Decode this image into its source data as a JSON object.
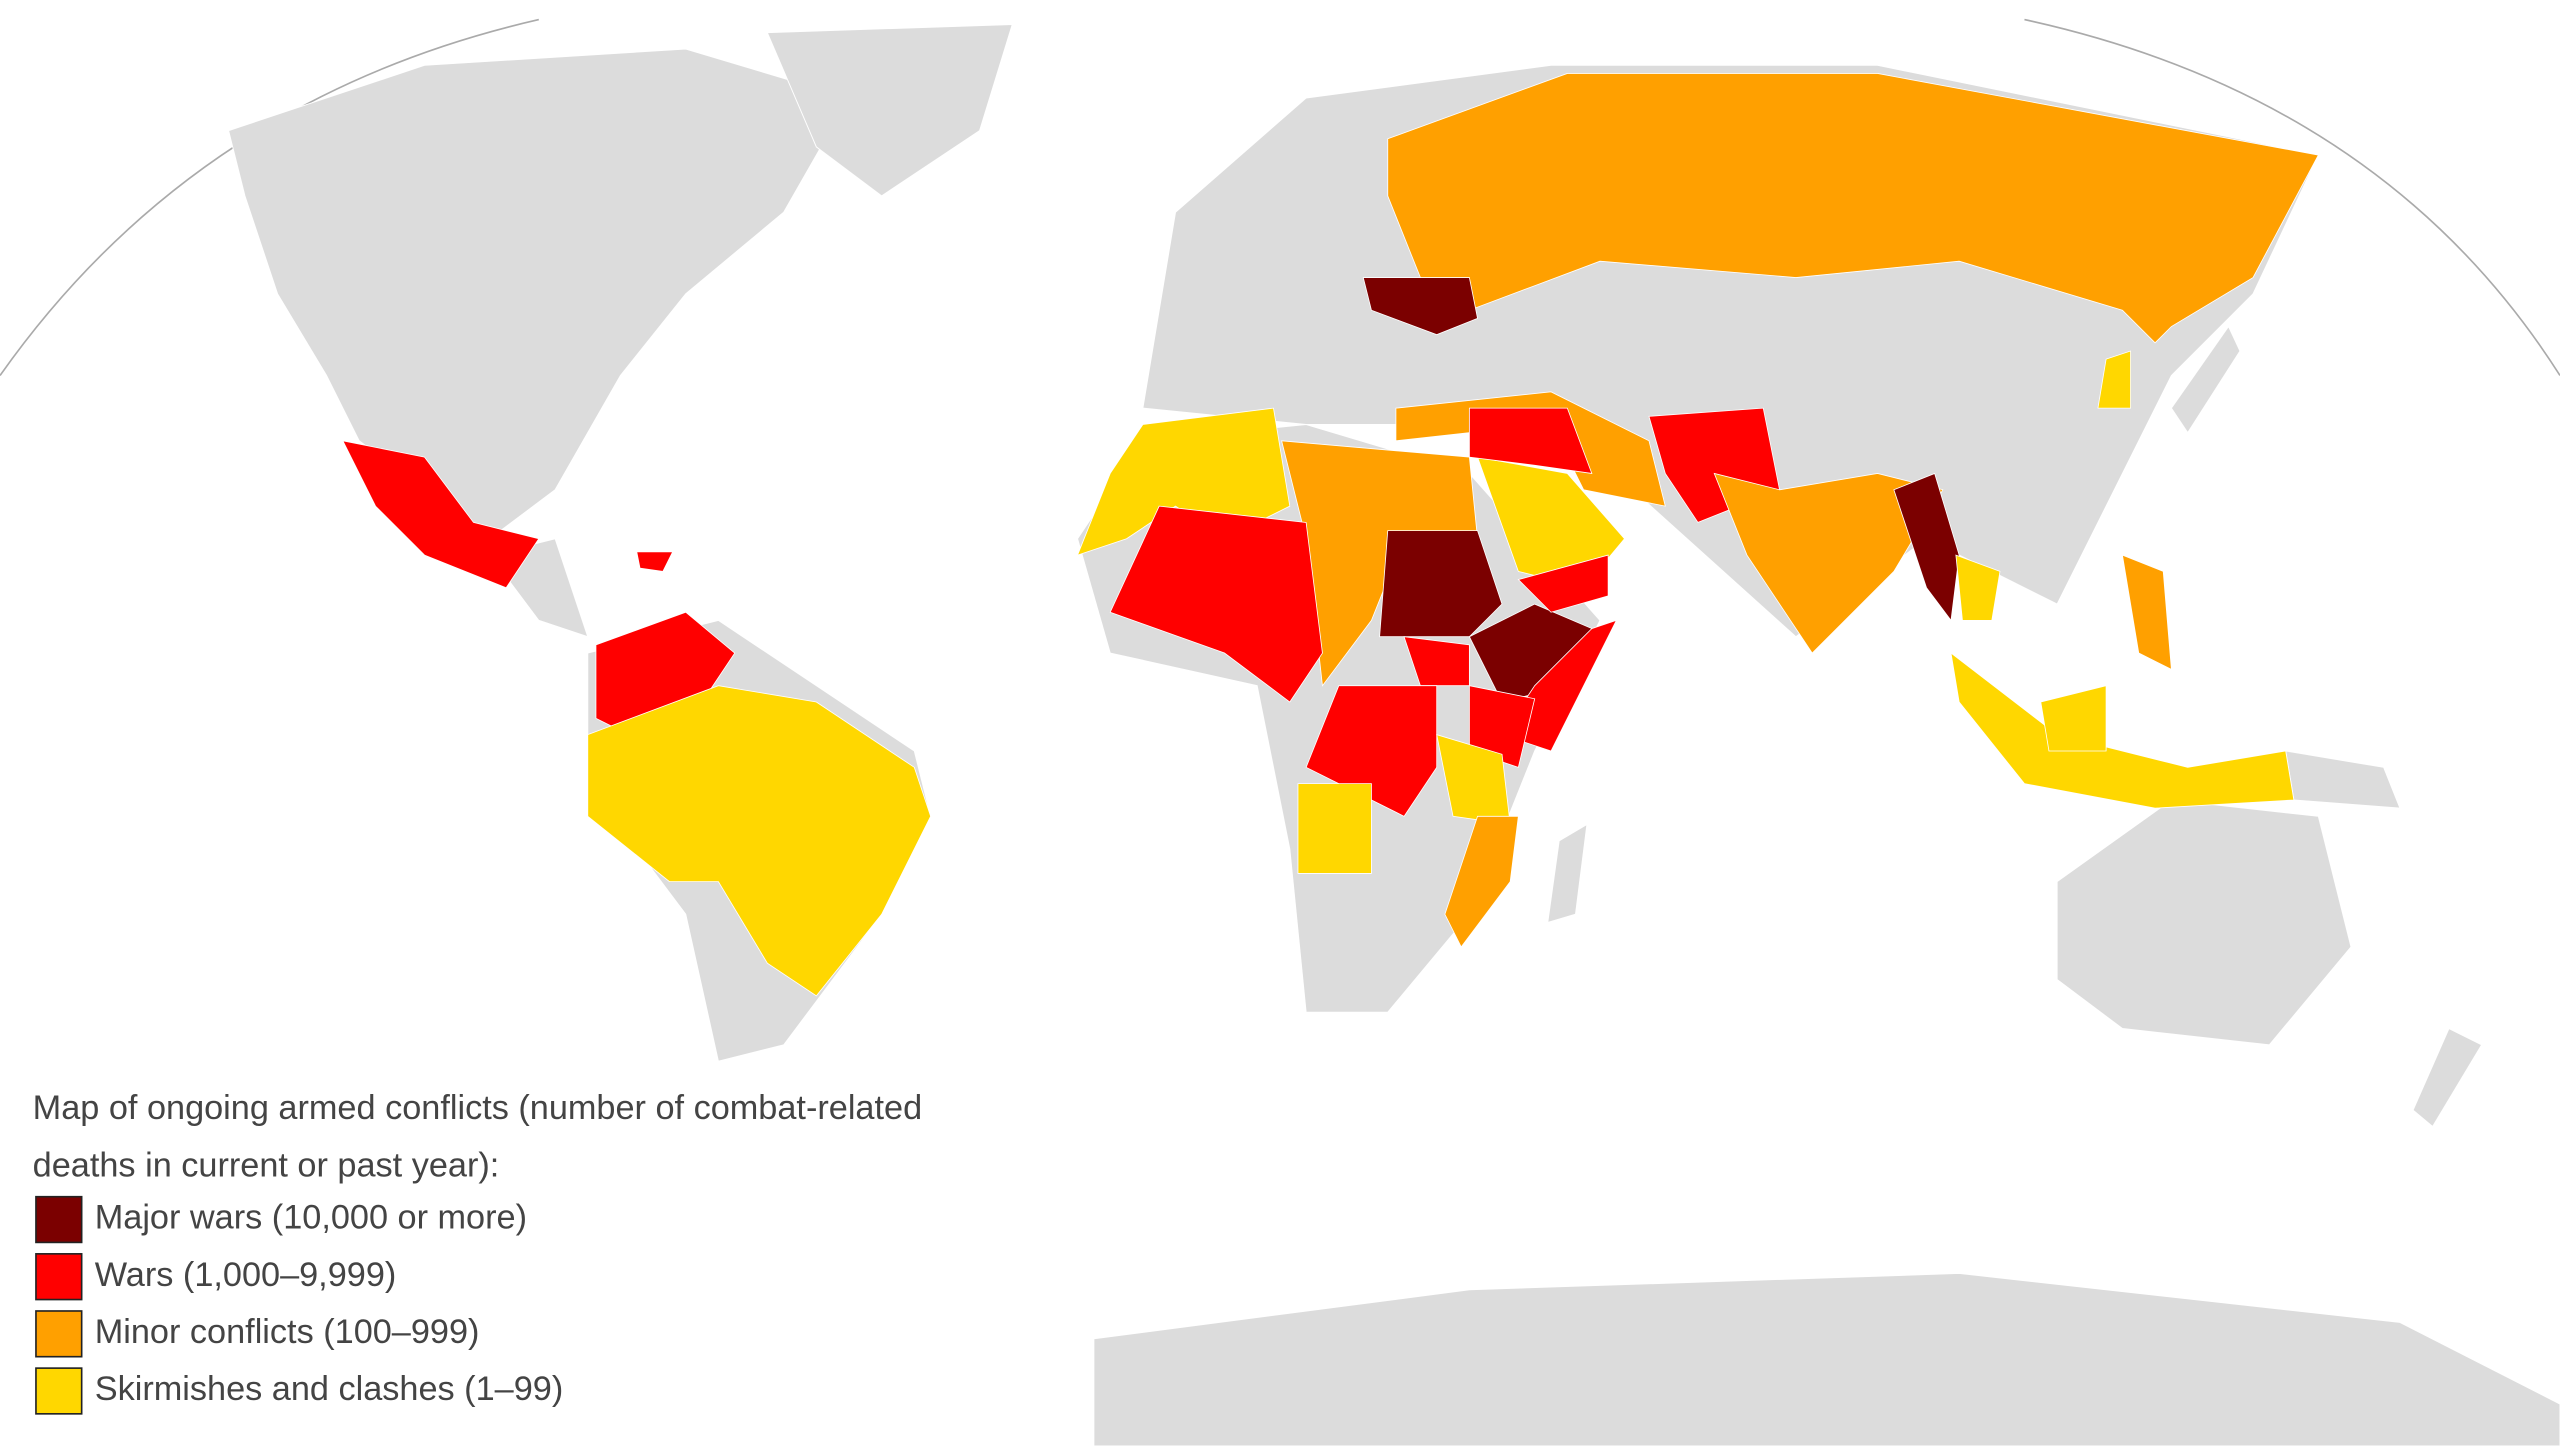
{
  "legend": {
    "title_lines": [
      "Map of ongoing armed conflicts (number of combat-related",
      "deaths in current or past year):"
    ],
    "items": [
      {
        "label": "Major wars (10,000 or more)",
        "color": "#7b0000"
      },
      {
        "label": "Wars (1,000–9,999)",
        "color": "#ff0000"
      },
      {
        "label": "Minor conflicts (100–999)",
        "color": "#ffa000"
      },
      {
        "label": "Skirmishes and clashes (1–99)",
        "color": "#ffd700"
      }
    ]
  }
}
